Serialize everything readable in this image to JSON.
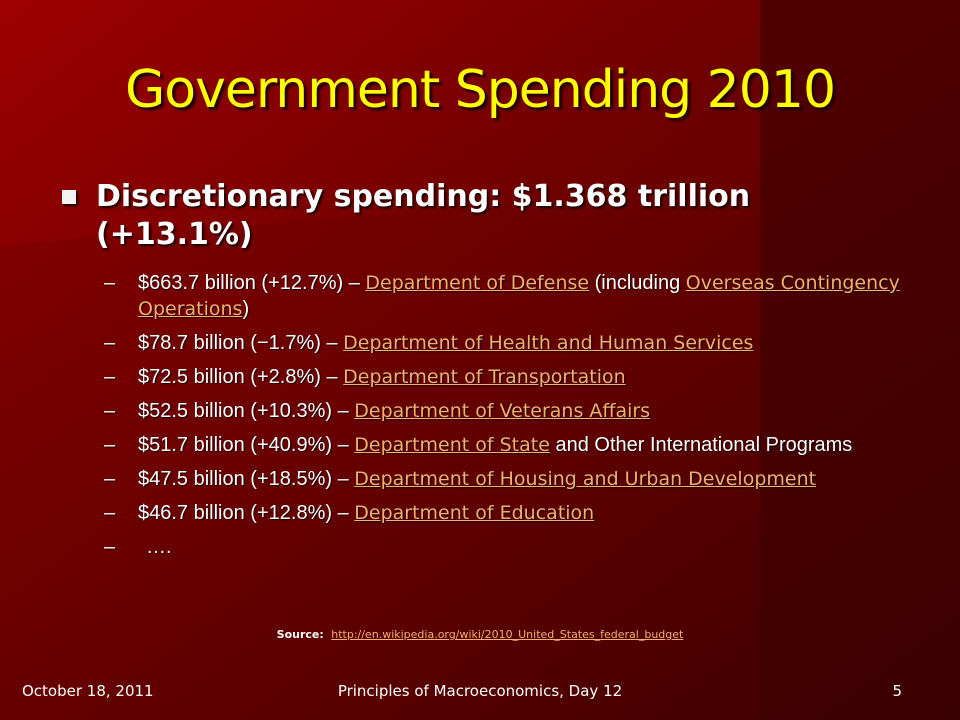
{
  "slide": {
    "title": "Government Spending 2010",
    "main_bullet": "Discretionary spending: $1.368 trillion (+13.1%)",
    "items": [
      {
        "dash": "–",
        "pre": "$663.7 billion (+12.7%) – ",
        "link1": "Department of Defense",
        "mid": " (including ",
        "link2": "Overseas Contingency Operations",
        "post": ")"
      },
      {
        "dash": "–",
        "pre": "$78.7 billion (−1.7%) – ",
        "link1": "Department of Health and Human Services",
        "post": ""
      },
      {
        "dash": "–",
        "pre": "$72.5 billion (+2.8%) – ",
        "link1": "Department of Transportation",
        "post": ""
      },
      {
        "dash": "–",
        "pre": "$52.5 billion (+10.3%) – ",
        "link1": "Department of Veterans Affairs",
        "post": ""
      },
      {
        "dash": "–",
        "pre": "$51.7 billion (+40.9%) – ",
        "link1": "Department of State",
        "post": " and Other International Programs"
      },
      {
        "dash": "–",
        "pre": "$47.5 billion (+18.5%) – ",
        "link1": "Department of Housing and Urban Development",
        "post": ""
      },
      {
        "dash": "–",
        "pre": "$46.7 billion (+12.8%) – ",
        "link1": "Department of Education",
        "post": ""
      },
      {
        "dash": "–",
        "pre": "…."
      }
    ],
    "source_label": "Source:",
    "source_url": "http://en.wikipedia.org/wiki/2010_United_States_federal_budget"
  },
  "footer": {
    "date": "October 18, 2011",
    "course": "Principles of Macroeconomics, Day 12",
    "page": "5"
  },
  "colors": {
    "title": "#ffff00",
    "link": "#f0b070",
    "background": "#5a0000"
  }
}
